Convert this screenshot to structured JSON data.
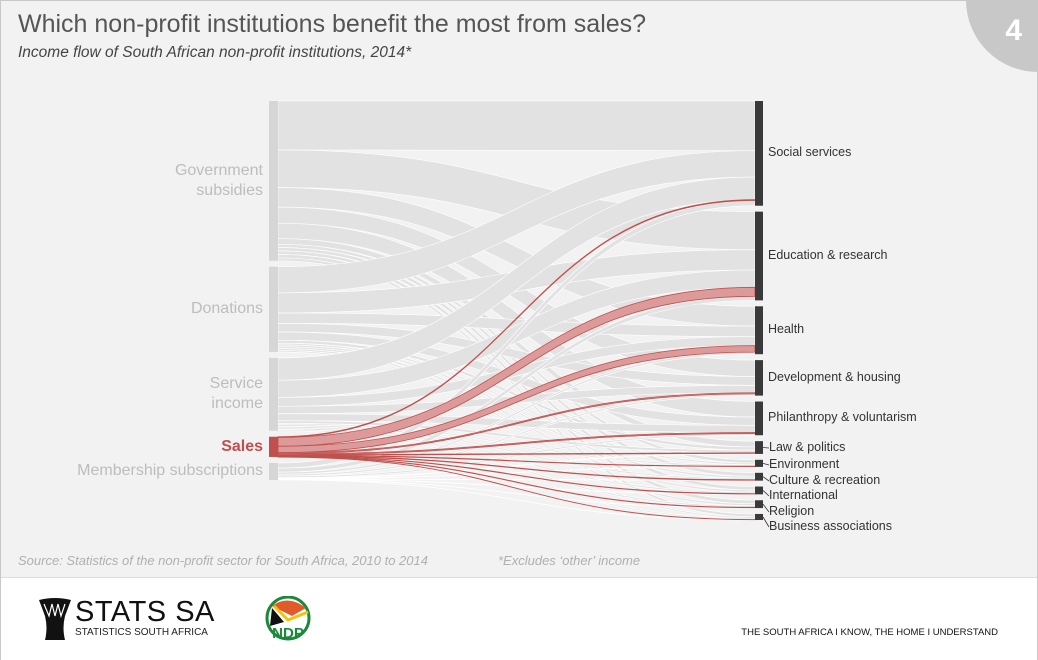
{
  "header": {
    "title": "Which non-profit institutions benefit the most from sales?",
    "subtitle": "Income flow of South African non-profit institutions, 2014*",
    "page_number": "4"
  },
  "colors": {
    "highlight": "#c0504d",
    "highlight_fill": "#dc9a9a",
    "flow": "#e2e2e2",
    "source_bar": "#d6d6d6",
    "target_bar": "#3a3a3a"
  },
  "chart_data": {
    "type": "sankey",
    "unit": "approximate share of total income (%)",
    "sources": [
      {
        "label": "Government subsidies",
        "lines": [
          "Government",
          "subsidies"
        ],
        "value": 45
      },
      {
        "label": "Donations",
        "lines": [
          "Donations"
        ],
        "value": 24
      },
      {
        "label": "Service income",
        "lines": [
          "Service",
          "income"
        ],
        "value": 20.5
      },
      {
        "label": "Sales",
        "lines": [
          "Sales"
        ],
        "value": 5.7,
        "highlight": true
      },
      {
        "label": "Membership subscriptions",
        "lines": [
          "Membership subscriptions"
        ],
        "value": 4.8
      }
    ],
    "targets": [
      {
        "label": "Social services",
        "value": 29.5
      },
      {
        "label": "Education & research",
        "value": 25
      },
      {
        "label": "Health",
        "value": 13.5
      },
      {
        "label": "Development & housing",
        "value": 10
      },
      {
        "label": "Philanthropy & voluntarism",
        "value": 9.5
      },
      {
        "label": "Law & politics",
        "value": 3.6
      },
      {
        "label": "Environment",
        "value": 2
      },
      {
        "label": "Culture & recreation",
        "value": 2.2
      },
      {
        "label": "International",
        "value": 2.2
      },
      {
        "label": "Religion",
        "value": 2.2
      },
      {
        "label": "Business associations",
        "value": 1.7
      }
    ],
    "sales_flows": [
      0.2,
      2.5,
      1.8,
      0.3,
      0.3,
      0.15,
      0.1,
      0.15,
      0.1,
      0.1,
      0.05
    ]
  },
  "footer": {
    "source": "Source: Statistics of the non-profit sector for South Africa, 2010 to 2014",
    "note": "*Excludes ‘other’ income",
    "logo_name": "STATS SA",
    "logo_sub": "STATISTICS SOUTH AFRICA",
    "ndp_logo": "NDP 2030",
    "slogan": "THE SOUTH AFRICA I KNOW, THE HOME I UNDERSTAND"
  }
}
